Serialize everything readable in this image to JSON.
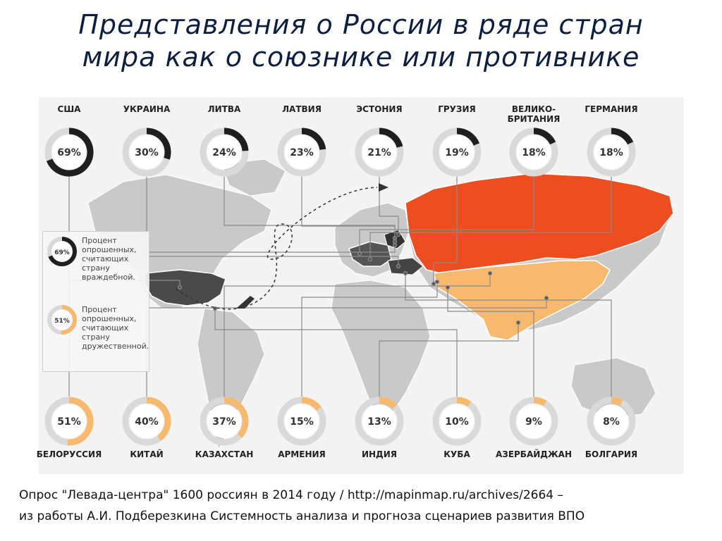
{
  "title": {
    "line1": "Представления о России в ряде стран",
    "line2": "мира как о союзнике или противнике"
  },
  "colors": {
    "enemy": "#1f1f1f",
    "friend": "#f6b96d",
    "russia": "#ec4e21",
    "ring": "#d9d9d9"
  },
  "legend": {
    "enemy_sample": "69%",
    "enemy_text": "Процент опрошенных, считающих страну враждебной.",
    "friend_sample": "51%",
    "friend_text": "Процент опрошенных, считающих страну дружественной."
  },
  "enemies": [
    {
      "country": "США",
      "percent": "69%",
      "value": 69
    },
    {
      "country": "УКРАИНА",
      "percent": "30%",
      "value": 30
    },
    {
      "country": "ЛИТВА",
      "percent": "24%",
      "value": 24
    },
    {
      "country": "ЛАТВИЯ",
      "percent": "23%",
      "value": 23
    },
    {
      "country": "ЭСТОНИЯ",
      "percent": "21%",
      "value": 21
    },
    {
      "country": "ГРУЗИЯ",
      "percent": "19%",
      "value": 19
    },
    {
      "country": "ВЕЛИКО-\nБРИТАНИЯ",
      "percent": "18%",
      "value": 18
    },
    {
      "country": "ГЕРМАНИЯ",
      "percent": "18%",
      "value": 18
    }
  ],
  "friends": [
    {
      "country": "БЕЛОРУССИЯ",
      "percent": "51%",
      "value": 51
    },
    {
      "country": "КИТАЙ",
      "percent": "40%",
      "value": 40
    },
    {
      "country": "КАЗАХСТАН",
      "percent": "37%",
      "value": 37
    },
    {
      "country": "АРМЕНИЯ",
      "percent": "15%",
      "value": 15
    },
    {
      "country": "ИНДИЯ",
      "percent": "13%",
      "value": 13
    },
    {
      "country": "КУБА",
      "percent": "10%",
      "value": 10
    },
    {
      "country": "АЗЕРБАЙДЖАН",
      "percent": "9%",
      "value": 9
    },
    {
      "country": "БОЛГАРИЯ",
      "percent": "8%",
      "value": 8
    }
  ],
  "caption": {
    "line1": "Опрос \"Левада-центра\" 1600 россиян в 2014 году / http://mapinmap.ru/archives/2664 –",
    "line2": "из работы А.И. Подберезкина Системность анализа и прогноза сценариев развития ВПО"
  }
}
